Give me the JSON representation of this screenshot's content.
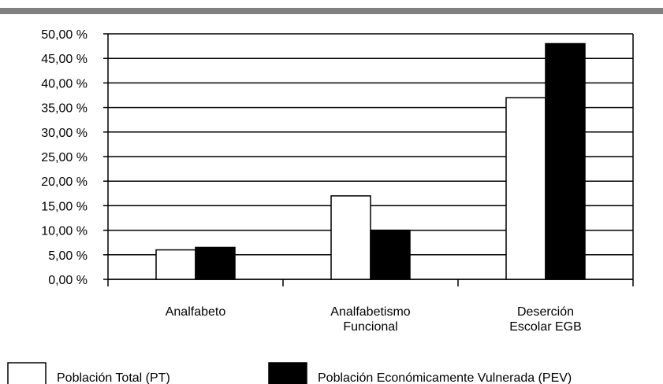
{
  "chart_data": {
    "type": "bar",
    "title": "",
    "xlabel": "",
    "ylabel": "",
    "ylim": [
      0,
      50
    ],
    "y_ticks": [
      "0,00 %",
      "5,00 %",
      "10,00 %",
      "15,00 %",
      "20,00 %",
      "25,00 %",
      "30,00 %",
      "35,00 %",
      "40,00 %",
      "45,00 %",
      "50,00 %"
    ],
    "categories": [
      [
        "Analfabeto"
      ],
      [
        "Analfabetismo",
        "Funcional"
      ],
      [
        "Deserción",
        "Escolar EGB"
      ]
    ],
    "series": [
      {
        "name": "Población Total (PT)",
        "color": "#ffffff",
        "values": [
          6.0,
          17.0,
          37.0
        ]
      },
      {
        "name": "Población Económicamente Vulnerada (PEV)",
        "color": "#000000",
        "values": [
          6.5,
          10.0,
          48.0
        ]
      }
    ],
    "grid": true,
    "legend_position": "bottom"
  }
}
